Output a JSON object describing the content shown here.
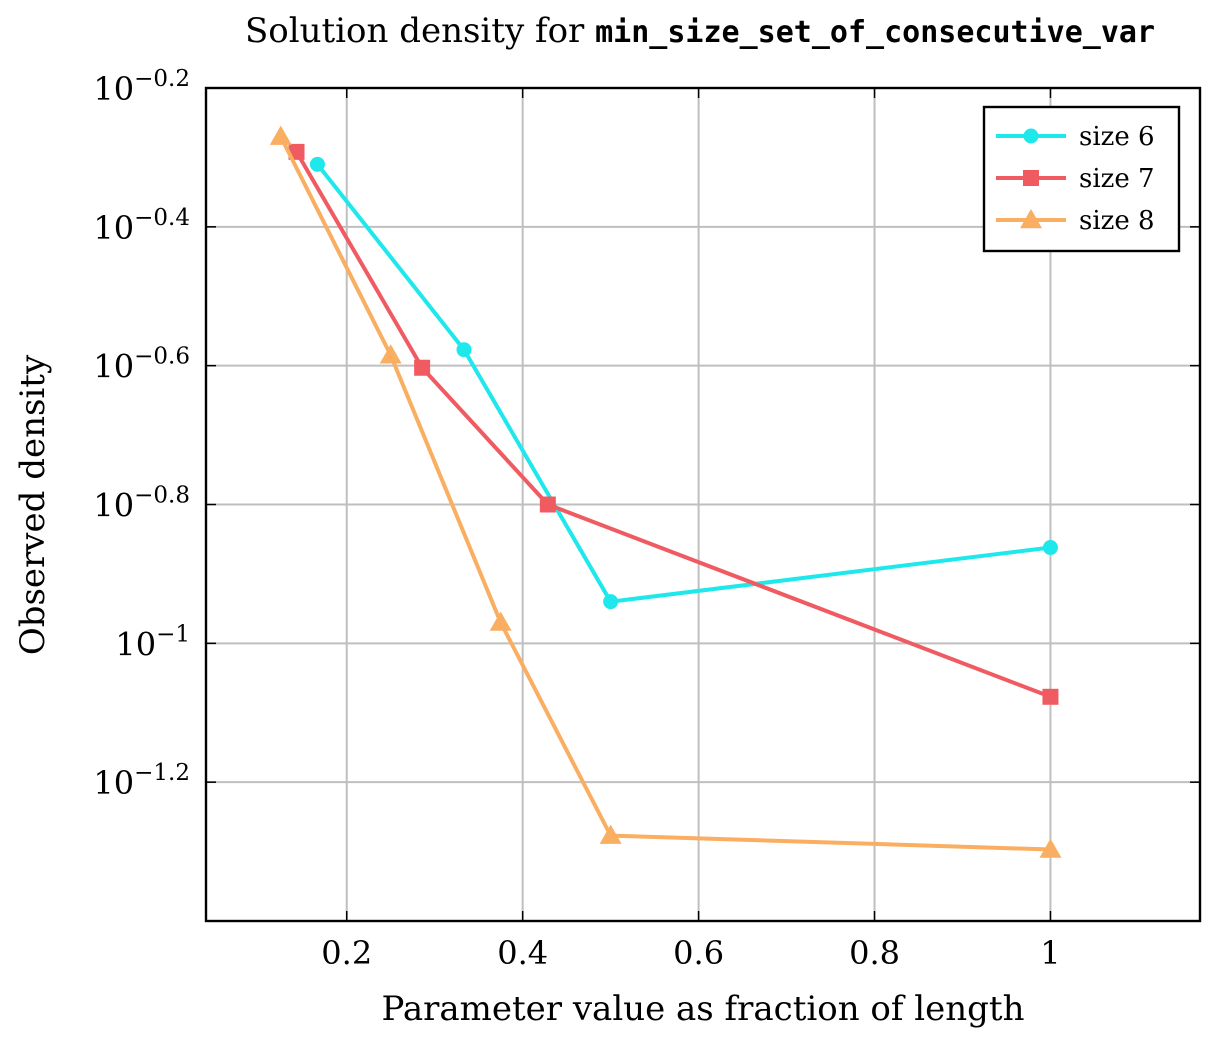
{
  "chart_data": {
    "type": "line",
    "title": {
      "prefix": "Solution density for ",
      "code": "min_size_set_of_consecutive_var"
    },
    "xlabel": "Parameter value as fraction of length",
    "ylabel": "Observed density",
    "xlim": [
      0.04,
      1.17
    ],
    "ylim_log10": [
      -1.4,
      -0.2
    ],
    "y_scale": "log10",
    "xticks": [
      0.2,
      0.4,
      0.6,
      0.8,
      1
    ],
    "xtick_labels": [
      "0.2",
      "0.4",
      "0.6",
      "0.8",
      "1"
    ],
    "yticks_log10": [
      -0.2,
      -0.4,
      -0.6,
      -0.8,
      -1,
      -1.2
    ],
    "ytick_labels": [
      {
        "base": "10",
        "exp": "−0.2"
      },
      {
        "base": "10",
        "exp": "−0.4"
      },
      {
        "base": "10",
        "exp": "−0.6"
      },
      {
        "base": "10",
        "exp": "−0.8"
      },
      {
        "base": "10",
        "exp": "−1"
      },
      {
        "base": "10",
        "exp": "−1.2"
      }
    ],
    "grid": true,
    "legend_position": "top-right",
    "series": [
      {
        "name": "size 6",
        "color": "#1ee8ec",
        "marker": "circle",
        "x": [
          0.1667,
          0.3333,
          0.5,
          1.0
        ],
        "y_log10": [
          -0.31,
          -0.577,
          -0.94,
          -0.862
        ]
      },
      {
        "name": "size 7",
        "color": "#f05b62",
        "marker": "square",
        "x": [
          0.1429,
          0.2857,
          0.4286,
          1.0
        ],
        "y_log10": [
          -0.292,
          -0.603,
          -0.8,
          -1.077
        ]
      },
      {
        "name": "size 8",
        "color": "#f9ae62",
        "marker": "triangle",
        "x": [
          0.125,
          0.25,
          0.375,
          0.5,
          1.0
        ],
        "y_log10": [
          -0.27,
          -0.585,
          -0.97,
          -1.277,
          -1.297
        ]
      }
    ]
  }
}
